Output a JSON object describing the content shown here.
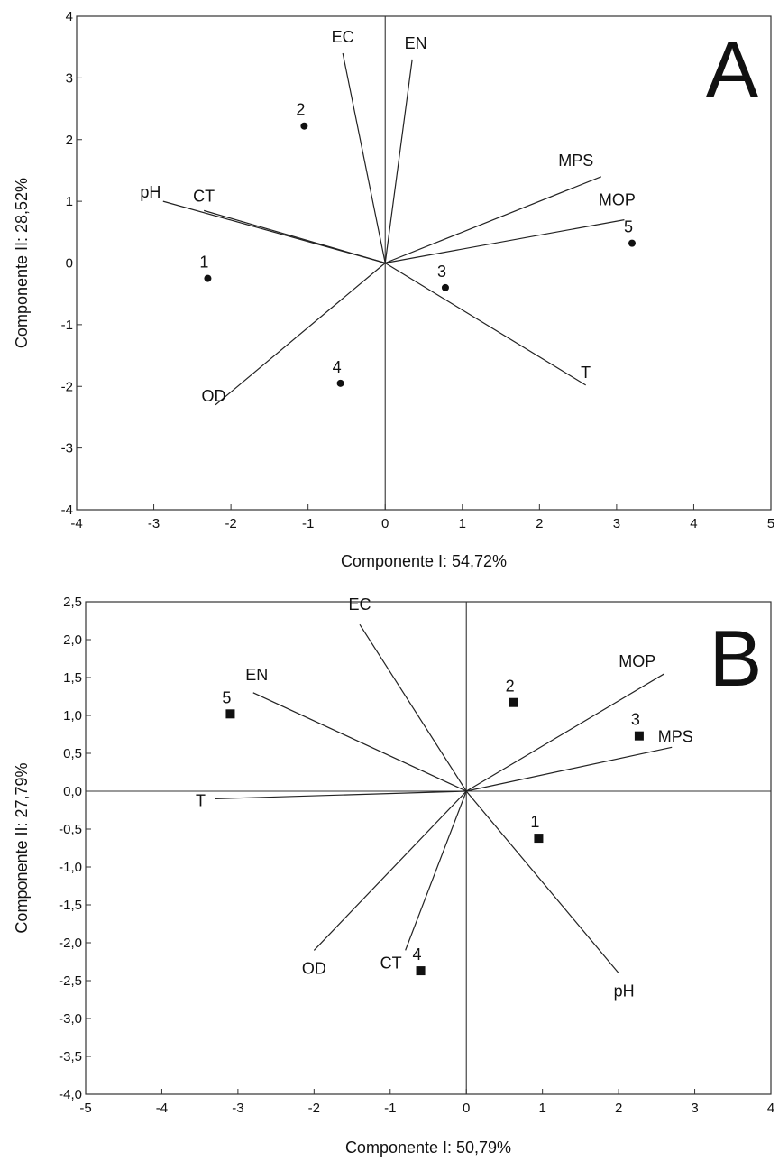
{
  "chart_data": [
    {
      "type": "scatter",
      "panel_label": "A",
      "xlabel": "Componente I: 54,72%",
      "ylabel": "Componente II: 28,52%",
      "xlim": [
        -4,
        5
      ],
      "ylim": [
        -4,
        4
      ],
      "x_ticks": [
        -4,
        -3,
        -2,
        -1,
        0,
        1,
        2,
        3,
        4,
        5
      ],
      "y_ticks": [
        -4,
        -3,
        -2,
        -1,
        0,
        1,
        2,
        3,
        4
      ],
      "x_tick_labels": [
        "-4",
        "-3",
        "-2",
        "-1",
        "0",
        "1",
        "2",
        "3",
        "4",
        "5"
      ],
      "y_tick_labels": [
        "-4",
        "-3",
        "-2",
        "-1",
        "0",
        "1",
        "2",
        "3",
        "4"
      ],
      "marker": "circle",
      "points": [
        {
          "label": "1",
          "x": -2.3,
          "y": -0.25
        },
        {
          "label": "2",
          "x": -1.05,
          "y": 2.22
        },
        {
          "label": "3",
          "x": 0.78,
          "y": -0.4
        },
        {
          "label": "4",
          "x": -0.58,
          "y": -1.95
        },
        {
          "label": "5",
          "x": 3.2,
          "y": 0.32
        }
      ],
      "loadings": [
        {
          "label": "EC",
          "x": -0.55,
          "y": 3.4
        },
        {
          "label": "EN",
          "x": 0.35,
          "y": 3.3
        },
        {
          "label": "MPS",
          "x": 2.8,
          "y": 1.4
        },
        {
          "label": "MOP",
          "x": 3.1,
          "y": 0.7
        },
        {
          "label": "pH",
          "x": -2.88,
          "y": 1.0
        },
        {
          "label": "CT",
          "x": -2.35,
          "y": 0.85
        },
        {
          "label": "OD",
          "x": -2.2,
          "y": -2.3
        },
        {
          "label": "T",
          "x": 2.6,
          "y": -1.98
        }
      ]
    },
    {
      "type": "scatter",
      "panel_label": "B",
      "xlabel": "Componente I: 50,79%",
      "ylabel": "Componente II: 27,79%",
      "xlim": [
        -5,
        4
      ],
      "ylim": [
        -4,
        2.5
      ],
      "x_ticks": [
        -5,
        -4,
        -3,
        -2,
        -1,
        0,
        1,
        2,
        3,
        4
      ],
      "y_ticks": [
        -4,
        -3.5,
        -3,
        -2.5,
        -2,
        -1.5,
        -1,
        -0.5,
        0,
        0.5,
        1,
        1.5,
        2,
        2.5
      ],
      "x_tick_labels": [
        "-5",
        "-4",
        "-3",
        "-2",
        "-1",
        "0",
        "1",
        "2",
        "3",
        "4"
      ],
      "y_tick_labels": [
        "-4,0",
        "-3,5",
        "-3,0",
        "-2,5",
        "-2,0",
        "-1,5",
        "-1,0",
        "-0,5",
        "0,0",
        "0,5",
        "1,0",
        "1,5",
        "2,0",
        "2,5"
      ],
      "marker": "square",
      "points": [
        {
          "label": "1",
          "x": 0.95,
          "y": -0.62
        },
        {
          "label": "2",
          "x": 0.62,
          "y": 1.17
        },
        {
          "label": "3",
          "x": 2.27,
          "y": 0.73
        },
        {
          "label": "4",
          "x": -0.6,
          "y": -2.37
        },
        {
          "label": "5",
          "x": -3.1,
          "y": 1.02
        }
      ],
      "loadings": [
        {
          "label": "EC",
          "x": -1.4,
          "y": 2.2
        },
        {
          "label": "EN",
          "x": -2.8,
          "y": 1.3
        },
        {
          "label": "MOP",
          "x": 2.6,
          "y": 1.55
        },
        {
          "label": "MPS",
          "x": 2.7,
          "y": 0.58
        },
        {
          "label": "T",
          "x": -3.3,
          "y": -0.1
        },
        {
          "label": "OD",
          "x": -2.0,
          "y": -2.1
        },
        {
          "label": "CT",
          "x": -0.8,
          "y": -2.1
        },
        {
          "label": "pH",
          "x": 2.0,
          "y": -2.4
        }
      ]
    }
  ]
}
